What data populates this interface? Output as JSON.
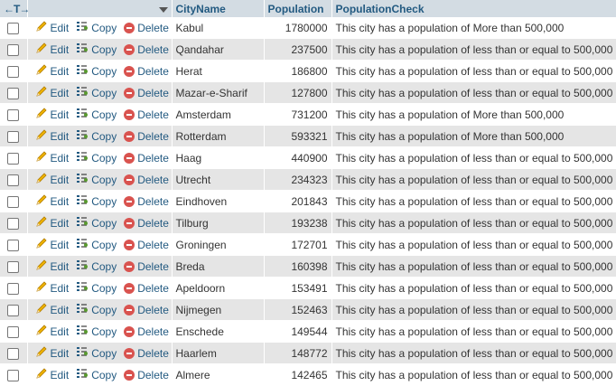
{
  "header": {
    "nav_arrows": "←T→",
    "columns": [
      "CityName",
      "Population",
      "PopulationCheck"
    ]
  },
  "actions": {
    "edit": "Edit",
    "copy": "Copy",
    "delete": "Delete"
  },
  "rows": [
    {
      "city": "Kabul",
      "population": "1780000",
      "check": "This city has a population of More than 500,000"
    },
    {
      "city": "Qandahar",
      "population": "237500",
      "check": "This city has a population of less than or equal to 500,000"
    },
    {
      "city": "Herat",
      "population": "186800",
      "check": "This city has a population of less than or equal to 500,000"
    },
    {
      "city": "Mazar-e-Sharif",
      "population": "127800",
      "check": "This city has a population of less than or equal to 500,000"
    },
    {
      "city": "Amsterdam",
      "population": "731200",
      "check": "This city has a population of More than 500,000"
    },
    {
      "city": "Rotterdam",
      "population": "593321",
      "check": "This city has a population of More than 500,000"
    },
    {
      "city": "Haag",
      "population": "440900",
      "check": "This city has a population of less than or equal to 500,000"
    },
    {
      "city": "Utrecht",
      "population": "234323",
      "check": "This city has a population of less than or equal to 500,000"
    },
    {
      "city": "Eindhoven",
      "population": "201843",
      "check": "This city has a population of less than or equal to 500,000"
    },
    {
      "city": "Tilburg",
      "population": "193238",
      "check": "This city has a population of less than or equal to 500,000"
    },
    {
      "city": "Groningen",
      "population": "172701",
      "check": "This city has a population of less than or equal to 500,000"
    },
    {
      "city": "Breda",
      "population": "160398",
      "check": "This city has a population of less than or equal to 500,000"
    },
    {
      "city": "Apeldoorn",
      "population": "153491",
      "check": "This city has a population of less than or equal to 500,000"
    },
    {
      "city": "Nijmegen",
      "population": "152463",
      "check": "This city has a population of less than or equal to 500,000"
    },
    {
      "city": "Enschede",
      "population": "149544",
      "check": "This city has a population of less than or equal to 500,000"
    },
    {
      "city": "Haarlem",
      "population": "148772",
      "check": "This city has a population of less than or equal to 500,000"
    },
    {
      "city": "Almere",
      "population": "142465",
      "check": "This city has a population of less than or equal to 500,000"
    }
  ],
  "colors": {
    "header_bg": "#d3dce3",
    "link": "#235a81",
    "row_alt": "#e5e5e5",
    "delete": "#d9534f"
  },
  "icons": {
    "edit": "pencil-icon",
    "copy": "copy-icon",
    "delete": "delete-icon",
    "sort": "sort-triangle-icon"
  }
}
